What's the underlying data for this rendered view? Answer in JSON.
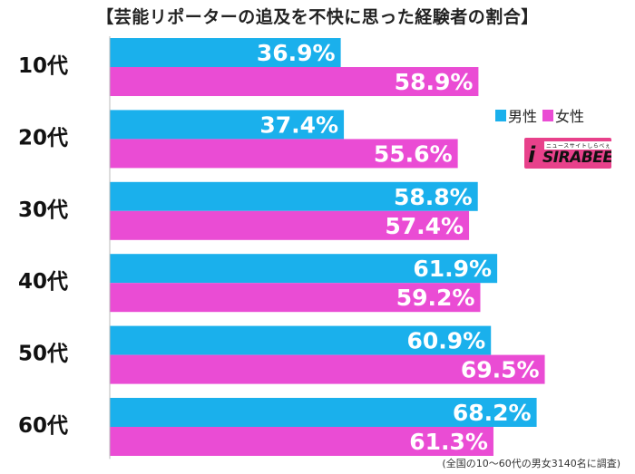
{
  "chart_data": {
    "type": "bar",
    "orientation": "horizontal",
    "title": "【芸能リポーターの追及を不快に思った経験者の割合】",
    "categories": [
      "10代",
      "20代",
      "30代",
      "40代",
      "50代",
      "60代"
    ],
    "series": [
      {
        "name": "男性",
        "color": "#1ab0ec",
        "values": [
          36.9,
          37.4,
          58.8,
          61.9,
          60.9,
          68.2
        ],
        "labels": [
          "36.9%",
          "37.4%",
          "58.8%",
          "61.9%",
          "60.9%",
          "68.2%"
        ]
      },
      {
        "name": "女性",
        "color": "#ea4cd4",
        "values": [
          58.9,
          55.6,
          57.4,
          59.2,
          69.5,
          61.3
        ],
        "labels": [
          "58.9%",
          "55.6%",
          "57.4%",
          "59.2%",
          "69.5%",
          "61.3%"
        ]
      }
    ],
    "xlim": [
      0,
      100
    ],
    "grid": false,
    "legend_position": "right"
  },
  "logo": {
    "word": "SIRABEE",
    "tagline": "ニュースサイトしらべぇ",
    "mark": "i",
    "color": "#e8418b"
  },
  "footnote": "(全国の10～60代の男女3140名に調査)"
}
